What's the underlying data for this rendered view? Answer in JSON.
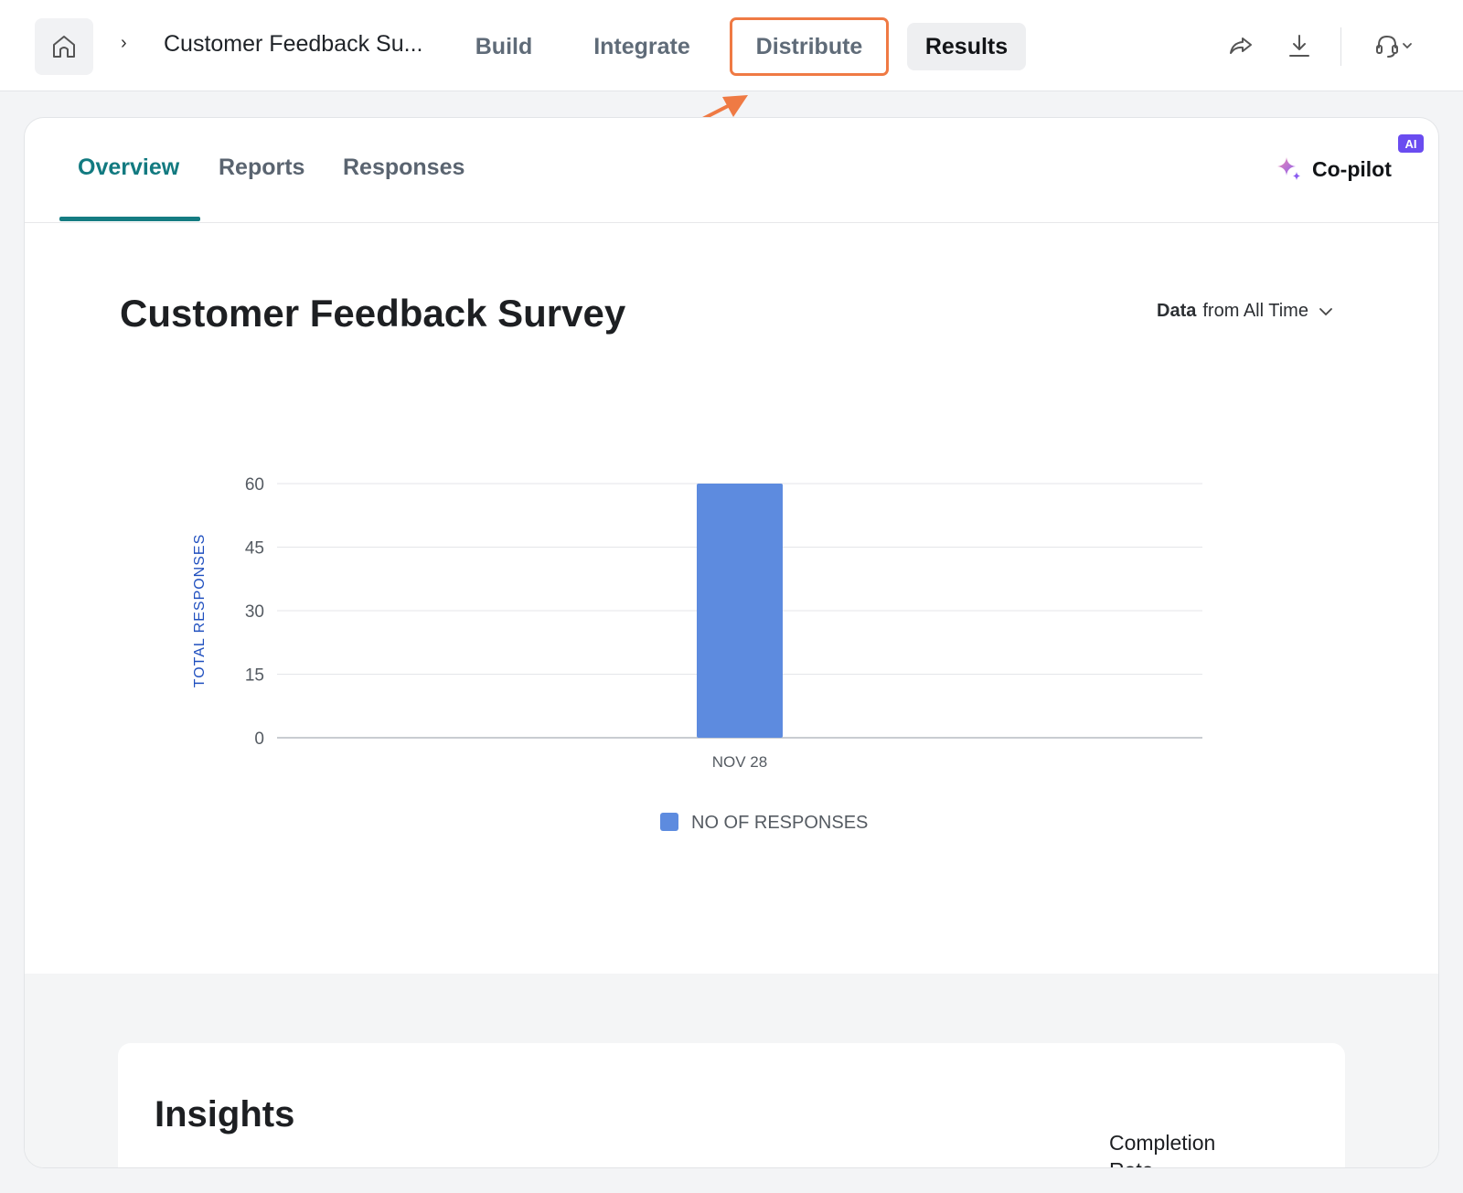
{
  "header": {
    "breadcrumb_separator": "›",
    "survey_title_truncated": "Customer Feedback Su...",
    "nav": {
      "build": "Build",
      "integrate": "Integrate",
      "distribute": "Distribute",
      "results": "Results"
    },
    "icons": [
      "home-icon",
      "share-icon",
      "download-icon",
      "headset-icon",
      "chevron-down-icon"
    ]
  },
  "subnav": {
    "tabs": [
      "Overview",
      "Reports",
      "Responses"
    ],
    "active_tab": "Overview",
    "copilot_label": "Co-pilot",
    "ai_badge": "AI"
  },
  "main": {
    "title": "Customer Feedback Survey",
    "filter_bold": "Data",
    "filter_rest": "from All Time"
  },
  "chart_data": {
    "type": "bar",
    "categories": [
      "NOV 28"
    ],
    "series": [
      {
        "name": "NO OF RESPONSES",
        "values": [
          60
        ],
        "color": "#5d8bdf"
      }
    ],
    "ylabel": "TOTAL RESPONSES",
    "xlabel": "",
    "ylim": [
      0,
      60
    ],
    "yticks": [
      0,
      15,
      30,
      45,
      60
    ],
    "grid": true,
    "legend": "bottom-center"
  },
  "insights": {
    "title": "Insights",
    "completion_label": "Completion Rate"
  },
  "colors": {
    "accent_teal": "#127a80",
    "highlight_orange": "#ef7a44",
    "ai_purple": "#6a4cf0",
    "bar_blue": "#5d8bdf",
    "axis_label_blue": "#1f4fbf"
  }
}
